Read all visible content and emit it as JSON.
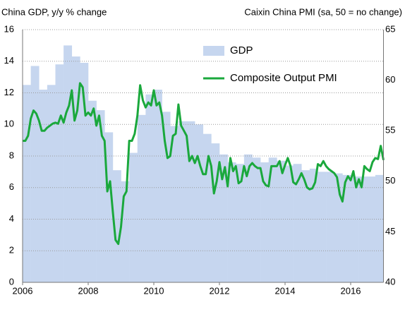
{
  "chart_data": {
    "type": "combo",
    "y_axis_title": "China GDP, y/y % change",
    "y2_axis_title": "Caixin China PMI (sa, 50 = no change)",
    "xlim": [
      2006,
      2017
    ],
    "xticks": [
      2006,
      2008,
      2010,
      2012,
      2014,
      2016
    ],
    "ylim": [
      0,
      16
    ],
    "yticks": [
      0,
      2,
      4,
      6,
      8,
      10,
      12,
      14,
      16
    ],
    "y2lim": [
      40,
      65
    ],
    "y2ticks": [
      40,
      45,
      50,
      55,
      60,
      65
    ],
    "grid": true,
    "legend": "top-center",
    "series": [
      {
        "name": "GDP",
        "type": "bar",
        "color": "#c6d6ef",
        "x": [
          2006,
          2006.25,
          2006.5,
          2006.75,
          2007,
          2007.25,
          2007.5,
          2007.75,
          2008,
          2008.25,
          2008.5,
          2008.75,
          2009,
          2009.25,
          2009.5,
          2009.75,
          2010,
          2010.25,
          2010.5,
          2010.75,
          2011,
          2011.25,
          2011.5,
          2011.75,
          2012,
          2012.25,
          2012.5,
          2012.75,
          2013,
          2013.25,
          2013.5,
          2013.75,
          2014,
          2014.25,
          2014.5,
          2014.75,
          2015,
          2015.25,
          2015.5,
          2015.75,
          2016,
          2016.25,
          2016.5,
          2016.75
        ],
        "values": [
          12.5,
          13.7,
          12.2,
          12.5,
          13.8,
          15.0,
          14.3,
          13.9,
          11.5,
          10.9,
          9.5,
          7.1,
          6.4,
          8.2,
          10.6,
          11.9,
          12.2,
          10.8,
          9.9,
          10.2,
          10.2,
          10.0,
          9.4,
          8.8,
          8.1,
          7.6,
          7.5,
          8.1,
          7.9,
          7.6,
          7.9,
          7.7,
          7.4,
          7.5,
          7.1,
          7.2,
          7.0,
          7.0,
          6.9,
          6.8,
          6.7,
          6.7,
          6.7,
          6.8
        ]
      },
      {
        "name": "Composite Output PMI",
        "type": "line",
        "axis": "y2",
        "color": "#1aa83c",
        "x": [
          2006,
          2006.083,
          2006.167,
          2006.25,
          2006.333,
          2006.417,
          2006.5,
          2006.583,
          2006.667,
          2006.75,
          2006.833,
          2006.917,
          2007,
          2007.083,
          2007.167,
          2007.25,
          2007.333,
          2007.417,
          2007.5,
          2007.583,
          2007.667,
          2007.75,
          2007.833,
          2007.917,
          2008,
          2008.083,
          2008.167,
          2008.25,
          2008.333,
          2008.417,
          2008.5,
          2008.583,
          2008.667,
          2008.75,
          2008.833,
          2008.917,
          2009,
          2009.083,
          2009.167,
          2009.25,
          2009.333,
          2009.417,
          2009.5,
          2009.583,
          2009.667,
          2009.75,
          2009.833,
          2009.917,
          2010,
          2010.083,
          2010.167,
          2010.25,
          2010.333,
          2010.417,
          2010.5,
          2010.583,
          2010.667,
          2010.75,
          2010.833,
          2010.917,
          2011,
          2011.083,
          2011.167,
          2011.25,
          2011.333,
          2011.417,
          2011.5,
          2011.583,
          2011.667,
          2011.75,
          2011.833,
          2011.917,
          2012,
          2012.083,
          2012.167,
          2012.25,
          2012.333,
          2012.417,
          2012.5,
          2012.583,
          2012.667,
          2012.75,
          2012.833,
          2012.917,
          2013,
          2013.083,
          2013.167,
          2013.25,
          2013.333,
          2013.417,
          2013.5,
          2013.583,
          2013.667,
          2013.75,
          2013.833,
          2013.917,
          2014,
          2014.083,
          2014.167,
          2014.25,
          2014.333,
          2014.417,
          2014.5,
          2014.583,
          2014.667,
          2014.75,
          2014.833,
          2014.917,
          2015,
          2015.083,
          2015.167,
          2015.25,
          2015.333,
          2015.417,
          2015.5,
          2015.583,
          2015.667,
          2015.75,
          2015.833,
          2015.917,
          2016,
          2016.083,
          2016.167,
          2016.25,
          2016.333,
          2016.417,
          2016.5,
          2016.583,
          2016.667,
          2016.75,
          2016.833,
          2016.917,
          2017
        ],
        "values": [
          54.0,
          54.0,
          54.5,
          56.2,
          57.0,
          56.7,
          56.0,
          55.0,
          55.0,
          55.3,
          55.5,
          55.7,
          55.8,
          55.7,
          56.5,
          55.8,
          56.8,
          57.5,
          59.0,
          56.0,
          57.0,
          59.7,
          59.3,
          56.5,
          56.8,
          56.5,
          57.2,
          55.5,
          56.5,
          54.5,
          54.0,
          49.0,
          50.0,
          47.0,
          44.2,
          43.8,
          45.5,
          48.5,
          49.0,
          54.0,
          54.0,
          54.7,
          56.5,
          59.5,
          58.0,
          57.3,
          57.8,
          57.5,
          59.0,
          57.5,
          57.8,
          56.5,
          54.0,
          52.3,
          52.5,
          54.5,
          54.7,
          57.6,
          55.5,
          55.0,
          54.5,
          52.0,
          52.5,
          51.8,
          52.5,
          51.5,
          50.7,
          50.7,
          52.5,
          51.5,
          48.8,
          50.0,
          51.9,
          50.2,
          51.4,
          49.5,
          52.3,
          51.0,
          51.5,
          49.8,
          50.0,
          51.5,
          50.5,
          51.5,
          51.8,
          51.5,
          51.3,
          51.3,
          50.0,
          49.6,
          49.5,
          51.5,
          51.5,
          51.5,
          52.0,
          50.8,
          51.6,
          52.3,
          51.5,
          49.9,
          49.7,
          50.2,
          50.8,
          50.2,
          49.4,
          49.2,
          49.3,
          49.9,
          51.7,
          51.5,
          52.0,
          51.5,
          51.2,
          51.0,
          50.8,
          50.4,
          48.7,
          48.0,
          49.9,
          50.5,
          50.1,
          51.0,
          49.4,
          50.2,
          49.4,
          51.5,
          51.2,
          51.0,
          51.9,
          52.3,
          52.2,
          53.5,
          52.1
        ]
      }
    ]
  }
}
